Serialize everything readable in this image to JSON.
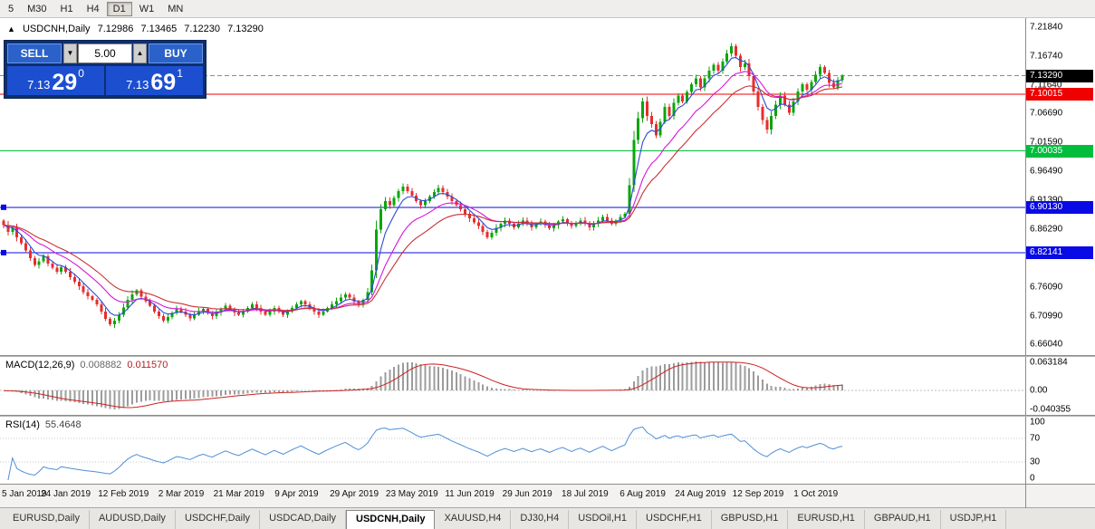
{
  "toolbar": {
    "timeframes": [
      "5",
      "M30",
      "H1",
      "H4",
      "D1",
      "W1",
      "MN"
    ],
    "active_timeframe": "D1"
  },
  "symbol_line": {
    "toggle_icon": "▲",
    "symbol": "USDCNH,Daily",
    "open": "7.12986",
    "high": "7.13465",
    "low": "7.12230",
    "close": "7.13290"
  },
  "one_click": {
    "sell_label": "SELL",
    "buy_label": "BUY",
    "volume": "5.00",
    "spin_down_icon": "▼",
    "spin_up_icon": "▲",
    "bid": {
      "small": "7.13",
      "big": "29",
      "pip": "0"
    },
    "ask": {
      "small": "7.13",
      "big": "69",
      "pip": "1"
    }
  },
  "indicators": {
    "macd": {
      "label": "MACD(12,26,9)",
      "value_main": "0.008882",
      "value_signal": "0.011570",
      "axis_labels": [
        "0.063184",
        "0.00",
        "-0.040355"
      ]
    },
    "rsi": {
      "label": "RSI(14)",
      "value": "55.4648",
      "axis_labels": [
        "100",
        "70",
        "30",
        "0"
      ],
      "levels": [
        70,
        30
      ]
    }
  },
  "tabs": {
    "items": [
      "EURUSD,Daily",
      "AUDUSD,Daily",
      "USDCHF,Daily",
      "USDCAD,Daily",
      "USDCNH,Daily",
      "XAUUSD,H4",
      "DJ30,H4",
      "USDOil,H1",
      "USDCHF,H1",
      "GBPUSD,H1",
      "EURUSD,H1",
      "GBPAUD,H1",
      "USDJP,H1"
    ],
    "active": "USDCNH,Daily"
  },
  "chart_data": {
    "type": "candlestick",
    "symbol": "USDCNH",
    "timeframe": "Daily",
    "price_axis_ticks": [
      "7.21840",
      "7.16740",
      "7.11640",
      "7.06690",
      "7.01590",
      "6.96490",
      "6.91390",
      "6.86290",
      "6.76090",
      "6.70990",
      "6.66040"
    ],
    "x_labels": [
      {
        "bar": 1,
        "label": "5 Jan 2019"
      },
      {
        "bar": 14,
        "label": "24 Jan 2019"
      },
      {
        "bar": 27,
        "label": "12 Feb 2019"
      },
      {
        "bar": 40,
        "label": "2 Mar 2019"
      },
      {
        "bar": 53,
        "label": "21 Mar 2019"
      },
      {
        "bar": 66,
        "label": "9 Apr 2019"
      },
      {
        "bar": 79,
        "label": "29 Apr 2019"
      },
      {
        "bar": 92,
        "label": "23 May 2019"
      },
      {
        "bar": 105,
        "label": "11 Jun 2019"
      },
      {
        "bar": 118,
        "label": "29 Jun 2019"
      },
      {
        "bar": 131,
        "label": "18 Jul 2019"
      },
      {
        "bar": 144,
        "label": "6 Aug 2019"
      },
      {
        "bar": 157,
        "label": "24 Aug 2019"
      },
      {
        "bar": 170,
        "label": "12 Sep 2019"
      },
      {
        "bar": 183,
        "label": "1 Oct 2019"
      }
    ],
    "levels": [
      {
        "price": 7.1329,
        "color": "#000000",
        "line_color": "#8A8A8A",
        "style": "dash",
        "box": true,
        "handle": false,
        "name": "bid-price"
      },
      {
        "price": 7.10015,
        "color": "#F00000",
        "style": "solid",
        "box": true,
        "handle": false,
        "name": "red-hline"
      },
      {
        "price": 7.00035,
        "color": "#00BE3C",
        "style": "solid",
        "box": true,
        "handle": false,
        "name": "green-hline"
      },
      {
        "price": 6.9013,
        "color": "#0A0AE6",
        "style": "solid",
        "box": true,
        "handle": true,
        "name": "blue-hline-upper"
      },
      {
        "price": 6.82141,
        "color": "#0A0AE6",
        "style": "solid",
        "box": true,
        "handle": true,
        "name": "blue-hline-lower"
      }
    ],
    "colors": {
      "up": "#0CA50C",
      "down": "#E62E2E",
      "macd_hist": "#9C9C9C",
      "macd_signal": "#CC2222",
      "rsi_line": "#4D8FD6"
    },
    "moving_averages": [
      {
        "period": 5,
        "color": "#2A49D8"
      },
      {
        "period": 13,
        "color": "#D816D8"
      },
      {
        "period": 21,
        "color": "#C83232"
      }
    ],
    "macd_params": {
      "fast": 12,
      "slow": 26,
      "signal": 9
    },
    "rsi_params": {
      "period": 14
    },
    "first_open": 6.878,
    "closes": [
      6.87,
      6.858,
      6.865,
      6.848,
      6.838,
      6.825,
      6.812,
      6.8,
      6.806,
      6.815,
      6.802,
      6.795,
      6.788,
      6.796,
      6.788,
      6.778,
      6.77,
      6.762,
      6.752,
      6.745,
      6.738,
      6.73,
      6.718,
      6.705,
      6.695,
      6.702,
      6.712,
      6.725,
      6.738,
      6.748,
      6.755,
      6.744,
      6.736,
      6.728,
      6.718,
      6.71,
      6.702,
      6.708,
      6.715,
      6.722,
      6.718,
      6.712,
      6.706,
      6.712,
      6.718,
      6.722,
      6.715,
      6.71,
      6.716,
      6.722,
      6.728,
      6.722,
      6.716,
      6.712,
      6.718,
      6.724,
      6.73,
      6.724,
      6.718,
      6.712,
      6.718,
      6.724,
      6.718,
      6.712,
      6.718,
      6.724,
      6.73,
      6.736,
      6.73,
      6.724,
      6.718,
      6.712,
      6.718,
      6.724,
      6.73,
      6.736,
      6.742,
      6.748,
      6.742,
      6.735,
      6.73,
      6.738,
      6.752,
      6.79,
      6.862,
      6.898,
      6.912,
      6.905,
      6.918,
      6.93,
      6.938,
      6.93,
      6.922,
      6.912,
      6.905,
      6.912,
      6.92,
      6.928,
      6.935,
      6.928,
      6.92,
      6.912,
      6.905,
      6.898,
      6.89,
      6.882,
      6.875,
      6.868,
      6.858,
      6.848,
      6.856,
      6.865,
      6.872,
      6.878,
      6.872,
      6.866,
      6.872,
      6.878,
      6.872,
      6.866,
      6.872,
      6.876,
      6.87,
      6.864,
      6.87,
      6.876,
      6.88,
      6.874,
      6.868,
      6.874,
      6.878,
      6.872,
      6.866,
      6.872,
      6.878,
      6.884,
      6.878,
      6.872,
      6.878,
      6.884,
      6.89,
      6.94,
      7.02,
      7.058,
      7.088,
      7.062,
      7.048,
      7.028,
      7.052,
      7.078,
      7.062,
      7.085,
      7.098,
      7.088,
      7.104,
      7.118,
      7.128,
      7.112,
      7.128,
      7.142,
      7.152,
      7.142,
      7.158,
      7.172,
      7.185,
      7.168,
      7.148,
      7.155,
      7.132,
      7.105,
      7.078,
      7.055,
      7.038,
      7.062,
      7.082,
      7.098,
      7.082,
      7.068,
      7.088,
      7.105,
      7.118,
      7.108,
      7.122,
      7.135,
      7.148,
      7.138,
      7.12,
      7.112,
      7.125,
      7.133
    ]
  }
}
